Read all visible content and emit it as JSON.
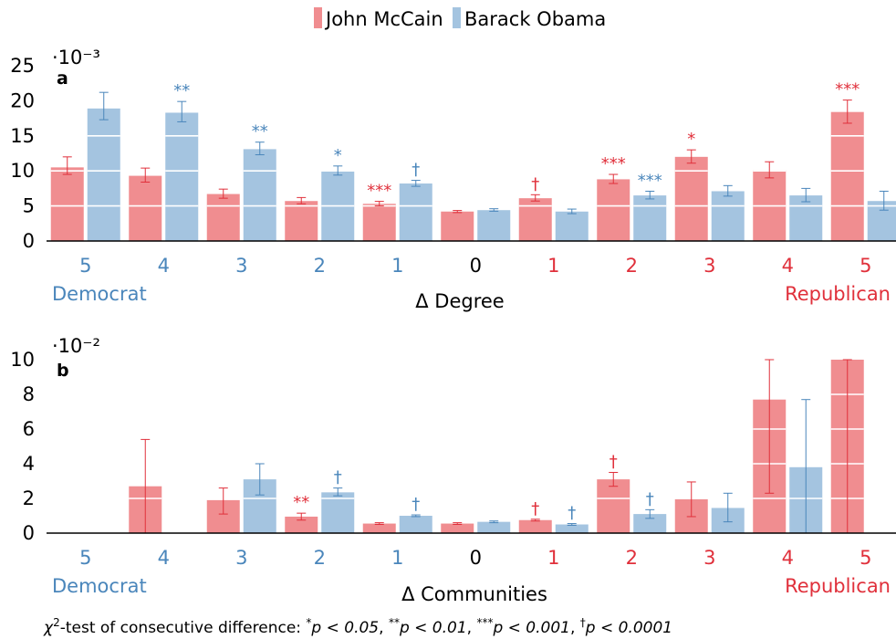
{
  "colors": {
    "mccain": "#f08d90",
    "obama": "#a4c4e0",
    "mccain_text": "#e0303b",
    "obama_text": "#4a86bb",
    "neutral": "#000000"
  },
  "legend": [
    {
      "name": "John McCain",
      "color": "#f08d90"
    },
    {
      "name": "Barack Obama",
      "color": "#a4c4e0"
    }
  ],
  "chart_data": [
    {
      "type": "bar",
      "panel": "a",
      "scale_label": "·10⁻³",
      "xlabel": "Δ Degree",
      "left_side_label": "Democrat",
      "right_side_label": "Republican",
      "categories": [
        "5",
        "4",
        "3",
        "2",
        "1",
        "0",
        "1",
        "2",
        "3",
        "4",
        "5"
      ],
      "category_sides": [
        "dem",
        "dem",
        "dem",
        "dem",
        "dem",
        "neutral",
        "rep",
        "rep",
        "rep",
        "rep",
        "rep"
      ],
      "ylim": [
        0,
        25
      ],
      "yticks": [
        0,
        5,
        10,
        15,
        20,
        25
      ],
      "gridlines": [
        5,
        10,
        15,
        20
      ],
      "series": [
        {
          "name": "John McCain",
          "values": [
            10.5,
            9.3,
            6.7,
            5.7,
            5.3,
            4.2,
            6.1,
            8.8,
            12.0,
            10.1,
            18.4
          ],
          "err_low": [
            1.0,
            0.9,
            0.6,
            0.4,
            0.3,
            0.15,
            0.4,
            0.6,
            0.9,
            1.1,
            1.6
          ],
          "err_high": [
            1.5,
            1.1,
            0.7,
            0.5,
            0.35,
            0.15,
            0.5,
            0.7,
            1.0,
            1.2,
            1.7
          ],
          "sig": [
            "",
            "",
            "",
            "",
            "***",
            "",
            "†",
            "***",
            "*",
            "",
            "***"
          ]
        },
        {
          "name": "Barack Obama",
          "values": [
            18.9,
            18.3,
            13.1,
            9.9,
            8.2,
            4.4,
            4.2,
            6.5,
            7.1,
            6.5,
            5.7
          ],
          "err_low": [
            1.6,
            1.3,
            0.8,
            0.5,
            0.4,
            0.15,
            0.3,
            0.5,
            0.7,
            0.9,
            1.3
          ],
          "err_high": [
            2.3,
            1.6,
            1.0,
            0.8,
            0.45,
            0.2,
            0.35,
            0.6,
            0.8,
            1.0,
            1.4
          ],
          "sig": [
            "",
            "**",
            "**",
            "*",
            "†",
            "",
            "",
            "***",
            "",
            "",
            ""
          ]
        }
      ]
    },
    {
      "type": "bar",
      "panel": "b",
      "scale_label": "·10⁻²",
      "xlabel": "Δ Communities",
      "left_side_label": "Democrat",
      "right_side_label": "Republican",
      "categories": [
        "5",
        "4",
        "3",
        "2",
        "1",
        "0",
        "1",
        "2",
        "3",
        "4",
        "5"
      ],
      "category_sides": [
        "dem",
        "dem",
        "dem",
        "dem",
        "dem",
        "neutral",
        "rep",
        "rep",
        "rep",
        "rep",
        "rep"
      ],
      "ylim": [
        0,
        10
      ],
      "yticks": [
        0,
        2,
        4,
        6,
        8,
        10
      ],
      "gridlines": [
        2,
        4,
        6,
        8
      ],
      "series": [
        {
          "name": "John McCain",
          "values": [
            0,
            2.7,
            1.9,
            0.95,
            0.55,
            0.55,
            0.75,
            3.1,
            1.95,
            7.7,
            10.0
          ],
          "err_low": [
            0,
            2.7,
            0.8,
            0.2,
            0.05,
            0.05,
            0.05,
            0.4,
            1.0,
            5.4,
            10.0
          ],
          "err_high": [
            0,
            2.7,
            0.7,
            0.2,
            0.05,
            0.05,
            0.05,
            0.4,
            1.0,
            2.3,
            0.0
          ],
          "sig": [
            "",
            "",
            "",
            "**",
            "",
            "",
            "†",
            "†",
            "",
            "",
            ""
          ]
        },
        {
          "name": "Barack Obama",
          "values": [
            0,
            0,
            3.1,
            2.35,
            1.0,
            0.65,
            0.5,
            1.1,
            1.45,
            3.8,
            0
          ],
          "err_low": [
            0,
            0,
            0.9,
            0.2,
            0.05,
            0.05,
            0.05,
            0.25,
            0.8,
            3.8,
            0
          ],
          "err_high": [
            0,
            0,
            0.9,
            0.25,
            0.05,
            0.05,
            0.05,
            0.25,
            0.85,
            3.9,
            0
          ],
          "sig": [
            "",
            "",
            "",
            "†",
            "†",
            "",
            "†",
            "†",
            "",
            "",
            ""
          ]
        }
      ]
    }
  ],
  "caption": {
    "chi": "χ",
    "sup2": "2",
    "lead": "-test of consecutive difference: ",
    "items": [
      {
        "mark": "*",
        "text": "p < 0.05"
      },
      {
        "mark": "**",
        "text": "p < 0.01"
      },
      {
        "mark": "***",
        "text": "p < 0.001"
      },
      {
        "mark": "†",
        "text": "p < 0.0001"
      }
    ]
  }
}
